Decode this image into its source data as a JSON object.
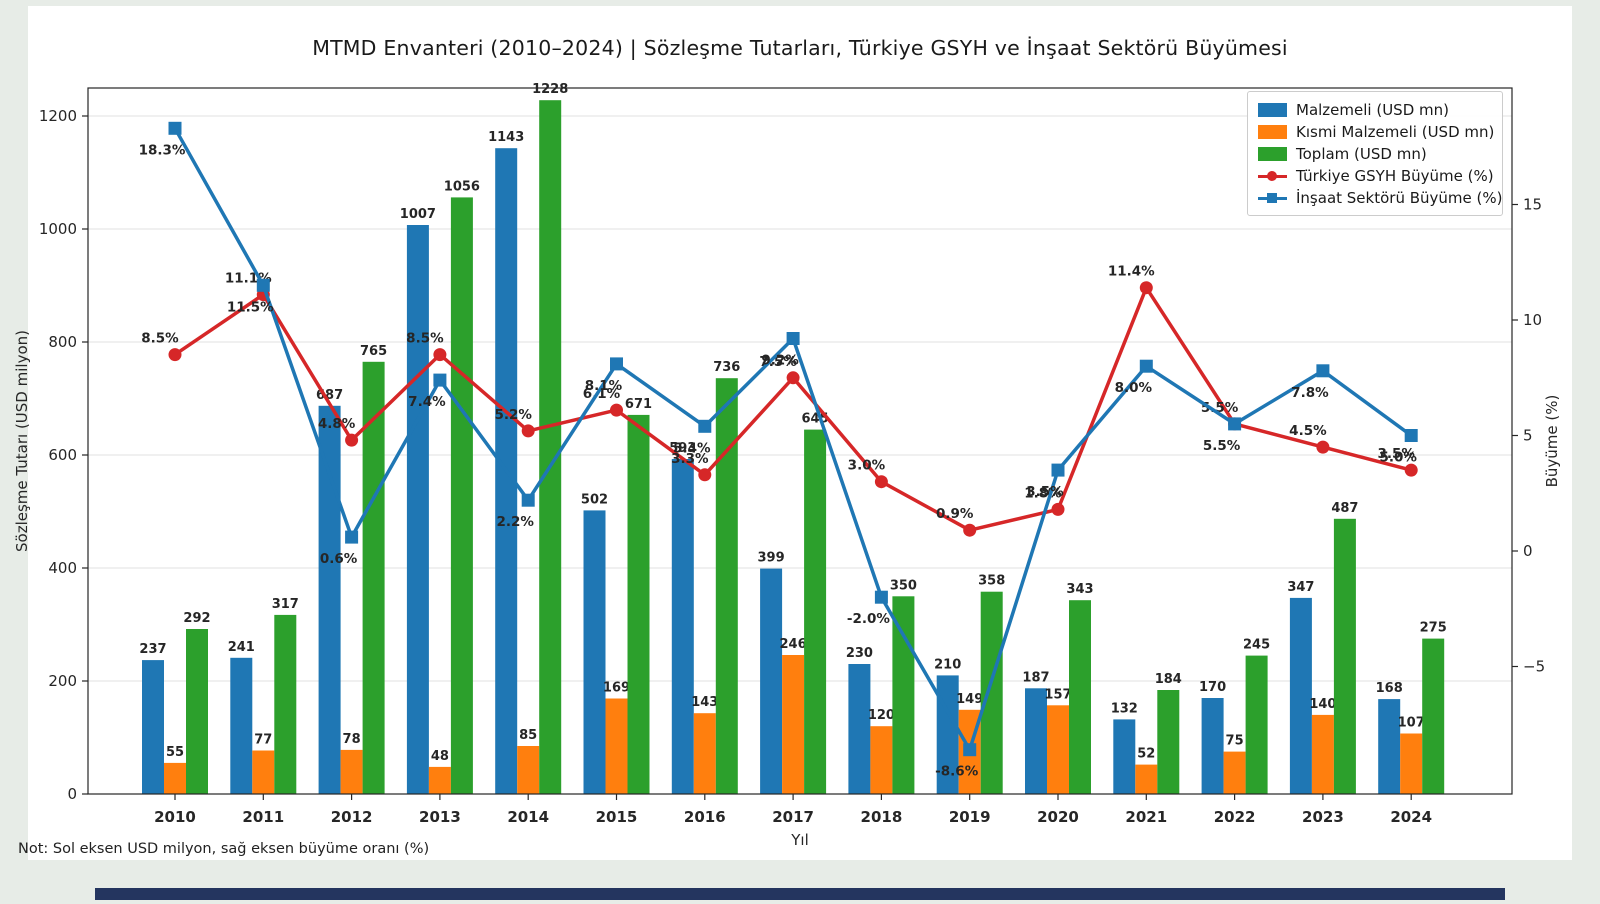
{
  "page": {
    "background": "#e7ece7",
    "figure_background": "#ffffff",
    "bottom_bar_color": "#24355f"
  },
  "chart_data": {
    "type": "bar+line",
    "title": "MTMD Envanteri (2010–2024) | Sözleşme Tutarları, Türkiye GSYH ve İnşaat Sektörü Büyümesi",
    "xlabel": "Yıl",
    "ylabel_left": "Sözleşme Tutarı (USD milyon)",
    "ylabel_right": "Büyüme (%)",
    "note": "Not: Sol eksen USD milyon, sağ eksen büyüme oranı (%)",
    "categories": [
      "2010",
      "2011",
      "2012",
      "2013",
      "2014",
      "2015",
      "2016",
      "2017",
      "2018",
      "2019",
      "2020",
      "2021",
      "2022",
      "2023",
      "2024"
    ],
    "series": [
      {
        "name": "Malzemeli (USD mn)",
        "type": "bar",
        "axis": "left",
        "color": "#1f77b4",
        "values": [
          237,
          241,
          687,
          1007,
          1143,
          502,
          593,
          399,
          230,
          210,
          187,
          132,
          170,
          347,
          168
        ]
      },
      {
        "name": "Kısmi Malzemeli (USD mn)",
        "type": "bar",
        "axis": "left",
        "color": "#ff7f0e",
        "values": [
          55,
          77,
          78,
          48,
          85,
          169,
          143,
          246,
          120,
          149,
          157,
          52,
          75,
          140,
          107
        ]
      },
      {
        "name": "Toplam (USD mn)",
        "type": "bar",
        "axis": "left",
        "color": "#2ca02c",
        "values": [
          292,
          317,
          765,
          1056,
          1228,
          671,
          736,
          645,
          350,
          358,
          343,
          184,
          245,
          487,
          275
        ]
      },
      {
        "name": "Türkiye GSYH Büyüme (%)",
        "type": "line",
        "axis": "right",
        "color": "#d62728",
        "marker": "circle",
        "values": [
          8.5,
          11.1,
          4.8,
          8.5,
          5.2,
          6.1,
          3.3,
          7.5,
          3.0,
          0.9,
          1.8,
          11.4,
          5.5,
          4.5,
          3.5
        ]
      },
      {
        "name": "İnşaat Sektörü Büyüme (%)",
        "type": "line",
        "axis": "right",
        "color": "#1f77b4",
        "marker": "square",
        "values": [
          18.3,
          11.5,
          0.6,
          7.4,
          2.2,
          8.1,
          5.4,
          9.2,
          -2.0,
          -8.6,
          3.5,
          8.0,
          5.5,
          7.8,
          5.0
        ]
      }
    ],
    "left_axis": {
      "ticks": [
        0,
        200,
        400,
        600,
        800,
        1000,
        1200
      ],
      "range": [
        0,
        1250
      ]
    },
    "right_axis": {
      "ticks": [
        -5,
        0,
        5,
        10,
        15
      ],
      "range": [
        -10.3,
        19.8
      ]
    },
    "grid": true,
    "legend_position": "top-right"
  }
}
